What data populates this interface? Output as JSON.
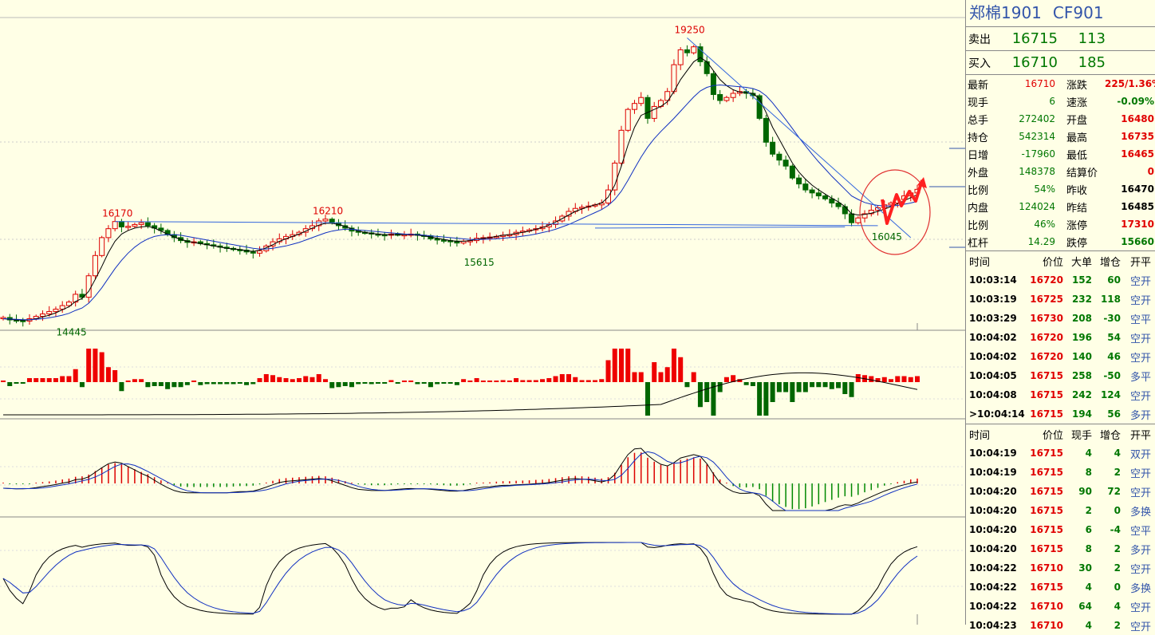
{
  "header": {
    "name": "郑棉1901",
    "code": "CF901"
  },
  "order_book": {
    "sell": {
      "label": "卖出",
      "price": "16715",
      "vol": "113"
    },
    "buy": {
      "label": "买入",
      "price": "16710",
      "vol": "185"
    }
  },
  "quote": [
    {
      "k1": "最新",
      "v1": "16710",
      "c1": "red",
      "k2": "涨跌",
      "v2": "225/1.36%",
      "c2": "red"
    },
    {
      "k1": "现手",
      "v1": "6",
      "c1": "green",
      "k2": "速涨",
      "v2": "-0.09%",
      "c2": "green"
    },
    {
      "k1": "总手",
      "v1": "272402",
      "c1": "green",
      "k2": "开盘",
      "v2": "16480",
      "c2": "red"
    },
    {
      "k1": "持仓",
      "v1": "542314",
      "c1": "green",
      "k2": "最高",
      "v2": "16735",
      "c2": "red"
    },
    {
      "k1": "日增",
      "v1": "-17960",
      "c1": "green",
      "k2": "最低",
      "v2": "16465",
      "c2": "red"
    },
    {
      "k1": "外盘",
      "v1": "148378",
      "c1": "green",
      "k2": "结算价",
      "v2": "0",
      "c2": "red"
    },
    {
      "k1": "比例",
      "v1": "54%",
      "c1": "green",
      "k2": "昨收",
      "v2": "16470",
      "c2": "black"
    },
    {
      "k1": "内盘",
      "v1": "124024",
      "c1": "green",
      "k2": "昨结",
      "v2": "16485",
      "c2": "black"
    },
    {
      "k1": "比例",
      "v1": "46%",
      "c1": "green",
      "k2": "涨停",
      "v2": "17310",
      "c2": "red"
    },
    {
      "k1": "杠杆",
      "v1": "14.29",
      "c1": "green",
      "k2": "跌停",
      "v2": "15660",
      "c2": "green"
    }
  ],
  "big_trades": {
    "headers": [
      "时间",
      "价位",
      "大单",
      "增仓",
      "开平"
    ],
    "rows": [
      {
        "t": "10:03:14",
        "p": "16720",
        "v": "152",
        "d": "60",
        "type": "空开"
      },
      {
        "t": "10:03:19",
        "p": "16725",
        "v": "232",
        "d": "118",
        "type": "空开"
      },
      {
        "t": "10:03:29",
        "p": "16730",
        "v": "208",
        "d": "-30",
        "type": "空平"
      },
      {
        "t": "10:04:02",
        "p": "16720",
        "v": "196",
        "d": "54",
        "type": "空开"
      },
      {
        "t": "10:04:02",
        "p": "16720",
        "v": "140",
        "d": "46",
        "type": "空开"
      },
      {
        "t": "10:04:05",
        "p": "16715",
        "v": "258",
        "d": "-50",
        "type": "多平"
      },
      {
        "t": "10:04:08",
        "p": "16715",
        "v": "242",
        "d": "124",
        "type": "空开"
      },
      {
        "t": ">10:04:14",
        "p": "16715",
        "v": "194",
        "d": "56",
        "type": "多开"
      }
    ]
  },
  "ticks": {
    "headers": [
      "时间",
      "价位",
      "现手",
      "增仓",
      "开平"
    ],
    "rows": [
      {
        "t": "10:04:19",
        "p": "16715",
        "v": "4",
        "d": "4",
        "type": "双开"
      },
      {
        "t": "10:04:19",
        "p": "16715",
        "v": "8",
        "d": "2",
        "type": "空开"
      },
      {
        "t": "10:04:20",
        "p": "16715",
        "v": "90",
        "d": "72",
        "type": "空开"
      },
      {
        "t": "10:04:20",
        "p": "16715",
        "v": "2",
        "d": "0",
        "type": "多换"
      },
      {
        "t": "10:04:20",
        "p": "16715",
        "v": "6",
        "d": "-4",
        "type": "空平"
      },
      {
        "t": "10:04:20",
        "p": "16715",
        "v": "8",
        "d": "2",
        "type": "多开"
      },
      {
        "t": "10:04:22",
        "p": "16710",
        "v": "30",
        "d": "2",
        "type": "空开"
      },
      {
        "t": "10:04:22",
        "p": "16715",
        "v": "4",
        "d": "0",
        "type": "多换"
      },
      {
        "t": "10:04:22",
        "p": "16710",
        "v": "64",
        "d": "4",
        "type": "空开"
      },
      {
        "t": "10:04:23",
        "p": "16710",
        "v": "4",
        "d": "2",
        "type": "空开"
      }
    ]
  },
  "chart_data": {
    "type": "candlestick",
    "annotations": [
      {
        "text": "16170",
        "color": "red"
      },
      {
        "text": "16210",
        "color": "red"
      },
      {
        "text": "19250",
        "color": "red"
      },
      {
        "text": "15615",
        "color": "green"
      },
      {
        "text": "14445",
        "color": "green"
      },
      {
        "text": "16045",
        "color": "green"
      }
    ],
    "closes": [
      14560,
      14520,
      14510,
      14500,
      14540,
      14580,
      14620,
      14660,
      14700,
      14760,
      14820,
      14950,
      14900,
      15260,
      15600,
      15900,
      16050,
      16170,
      16080,
      16090,
      16120,
      16150,
      16100,
      16060,
      16020,
      15950,
      15900,
      15850,
      15820,
      15830,
      15800,
      15780,
      15760,
      15740,
      15720,
      15700,
      15690,
      15660,
      15640,
      15680,
      15760,
      15830,
      15880,
      15920,
      15950,
      15990,
      16050,
      16100,
      16180,
      16210,
      16150,
      16100,
      16060,
      16010,
      15990,
      15980,
      15960,
      15950,
      15940,
      15960,
      15950,
      15950,
      15960,
      15940,
      15930,
      15880,
      15860,
      15850,
      15840,
      15810,
      15840,
      15850,
      15890,
      15900,
      15910,
      15920,
      15940,
      15950,
      15990,
      16010,
      16030,
      16050,
      16080,
      16120,
      16180,
      16260,
      16340,
      16390,
      16410,
      16430,
      16450,
      16480,
      16700,
      17150,
      17700,
      18050,
      18150,
      18250,
      17900,
      18100,
      18200,
      18350,
      18800,
      19050,
      19000,
      19100,
      18850,
      18650,
      18300,
      18200,
      18250,
      18320,
      18350,
      18320,
      18280,
      17900,
      17500,
      17300,
      17200,
      17100,
      16900,
      16800,
      16700,
      16650,
      16600,
      16550,
      16480,
      16420,
      16300,
      16150,
      16230,
      16300,
      16360,
      16400,
      16450,
      16480,
      16540,
      16600,
      16650,
      16710
    ],
    "ma_fast": [
      14540,
      14530,
      14520,
      14515,
      14520,
      14540,
      14570,
      14600,
      14640,
      14690,
      14740,
      14830,
      14880,
      15000,
      15200,
      15420,
      15650,
      15840,
      15960,
      16020,
      16060,
      16080,
      16090,
      16060,
      16010,
      15960,
      15910,
      15870,
      15840,
      15820,
      15800,
      15780,
      15760,
      15740,
      15720,
      15710,
      15700,
      15680,
      15670,
      15690,
      15730,
      15780,
      15840,
      15880,
      15920,
      15960,
      16010,
      16060,
      16110,
      16140,
      16140,
      16120,
      16090,
      16050,
      16010,
      15990,
      15970,
      15960,
      15950,
      15950,
      15950,
      15950,
      15950,
      15940,
      15930,
      15910,
      15890,
      15870,
      15850,
      15840,
      15840,
      15850,
      15870,
      15890,
      15900,
      15920,
      15940,
      15950,
      15970,
      15990,
      16010,
      16040,
      16070,
      16110,
      16160,
      16220,
      16280,
      16340,
      16380,
      16420,
      16450,
      16480,
      16580,
      16780,
      17100,
      17450,
      17750,
      17950,
      18000,
      18050,
      18100,
      18180,
      18350,
      18550,
      18700,
      18850,
      18920,
      18850,
      18700,
      18550,
      18450,
      18380,
      18340,
      18330,
      18320,
      18230,
      18000,
      17750,
      17550,
      17350,
      17150,
      17000,
      16880,
      16780,
      16700,
      16630,
      16560,
      16500,
      16420,
      16300,
      16280,
      16290,
      16310,
      16340,
      16380,
      16420,
      16470,
      16520,
      16570,
      16620
    ],
    "ma_slow": [
      14540,
      14535,
      14530,
      14525,
      14525,
      14530,
      14540,
      14555,
      14575,
      14600,
      14630,
      14680,
      14720,
      14800,
      14920,
      15060,
      15220,
      15380,
      15520,
      15640,
      15740,
      15820,
      15880,
      15920,
      15940,
      15950,
      15950,
      15940,
      15920,
      15900,
      15880,
      15860,
      15840,
      15820,
      15800,
      15780,
      15760,
      15740,
      15720,
      15710,
      15710,
      15720,
      15740,
      15760,
      15790,
      15820,
      15860,
      15900,
      15940,
      15980,
      16010,
      16030,
      16040,
      16040,
      16030,
      16020,
      16010,
      16000,
      15990,
      15980,
      15970,
      15960,
      15955,
      15950,
      15940,
      15930,
      15920,
      15910,
      15900,
      15890,
      15880,
      15870,
      15870,
      15870,
      15875,
      15880,
      15890,
      15900,
      15910,
      15925,
      15940,
      15960,
      15985,
      16010,
      16040,
      16080,
      16120,
      16170,
      16220,
      16270,
      16320,
      16370,
      16440,
      16540,
      16680,
      16860,
      17060,
      17250,
      17420,
      17560,
      17680,
      17790,
      17900,
      18020,
      18140,
      18260,
      18360,
      18420,
      18450,
      18460,
      18450,
      18440,
      18430,
      18420,
      18400,
      18360,
      18280,
      18160,
      18020,
      17880,
      17730,
      17580,
      17440,
      17300,
      17170,
      17050,
      16930,
      16820,
      16710,
      16600,
      16540,
      16490,
      16460,
      16440,
      16430,
      16430,
      16440,
      16460,
      16480,
      16510
    ]
  }
}
